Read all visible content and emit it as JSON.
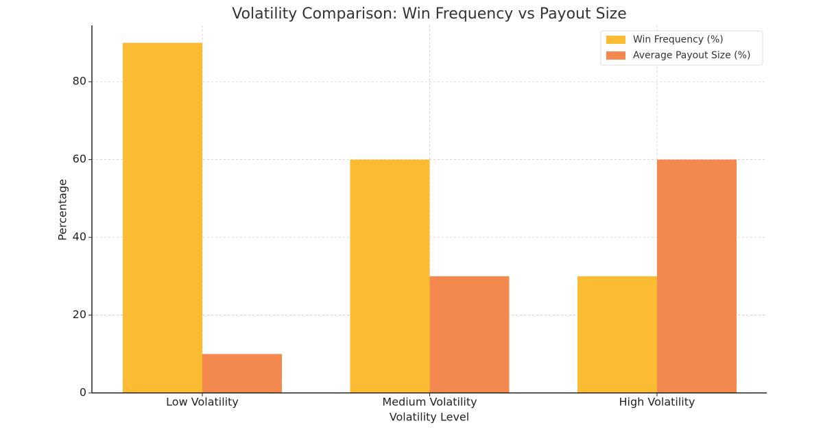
{
  "chart_data": {
    "type": "bar",
    "title": "Volatility Comparison: Win Frequency vs Payout Size",
    "x_label": "Volatility Level",
    "y_label": "Percentage",
    "categories": [
      "Low Volatility",
      "Medium Volatility",
      "High Volatility"
    ],
    "series": [
      {
        "name": "Win Frequency (%)",
        "color": "#fbbc34",
        "values": [
          90,
          60,
          30
        ]
      },
      {
        "name": "Average Payout Size (%)",
        "color": "#f4894f",
        "values": [
          10,
          30,
          60
        ]
      }
    ],
    "ylim": [
      0,
      94.5
    ],
    "yticks": [
      0,
      20,
      40,
      60,
      80
    ],
    "grid": true,
    "legend": "upper right"
  }
}
